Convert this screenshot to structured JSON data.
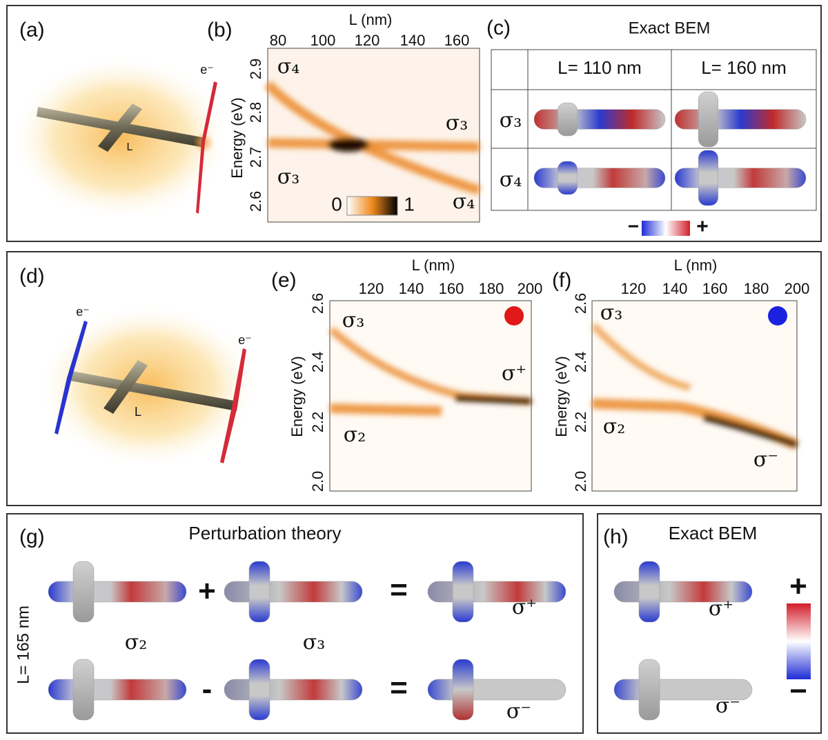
{
  "panels": {
    "a": {
      "label": "(a)",
      "electron": "e⁻",
      "length": "L"
    },
    "b": {
      "label": "(b)",
      "x_axis": "L (nm)",
      "x_ticks": [
        "80",
        "100",
        "120",
        "140",
        "160"
      ],
      "y_axis": "Energy (eV)",
      "y_ticks": [
        "2.9",
        "2.8",
        "2.7",
        "2.6"
      ],
      "annotations": [
        "σ₄",
        "σ₃",
        "σ₃",
        "σ₄"
      ],
      "colorbar": [
        "0",
        "1"
      ]
    },
    "c": {
      "label": "(c)",
      "title": "Exact BEM",
      "columns": [
        "L= 110 nm",
        "L= 160 nm"
      ],
      "rows": [
        "σ₃",
        "σ₄"
      ],
      "colorbar": [
        "−",
        "+"
      ]
    },
    "d": {
      "label": "(d)",
      "electrons": [
        "e⁻",
        "e⁻"
      ],
      "length": "L"
    },
    "e": {
      "label": "(e)",
      "x_axis": "L (nm)",
      "x_ticks": [
        "120",
        "140",
        "160",
        "180",
        "200"
      ],
      "y_axis": "Energy (eV)",
      "y_ticks": [
        "2.6",
        "2.4",
        "2.2",
        "2.0"
      ],
      "annotations": [
        "σ₃",
        "σ⁺",
        "σ₂"
      ]
    },
    "f": {
      "label": "(f)",
      "x_axis": "L (nm)",
      "x_ticks": [
        "120",
        "140",
        "160",
        "180",
        "200"
      ],
      "y_axis": "Energy (eV)",
      "y_ticks": [
        "2.6",
        "2.4",
        "2.2",
        "2.0"
      ],
      "annotations": [
        "σ₃",
        "σ₂",
        "σ⁻"
      ]
    },
    "g": {
      "label": "(g)",
      "title": "Perturbation theory",
      "length": "L= 165 nm",
      "operators": [
        "+",
        "=",
        "-",
        "="
      ],
      "annotations": [
        "σ⁺",
        "σ₂",
        "σ₃",
        "σ⁻"
      ]
    },
    "h": {
      "label": "(h)",
      "title": "Exact BEM",
      "annotations": [
        "σ⁺",
        "σ⁻"
      ],
      "colorbar": [
        "+",
        "−"
      ]
    }
  }
}
